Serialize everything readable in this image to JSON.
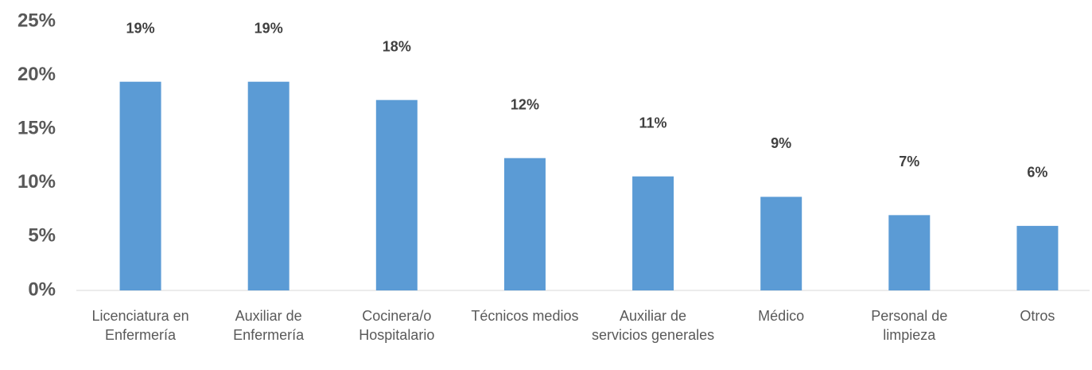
{
  "chart_data": {
    "type": "bar",
    "categories": [
      "Licenciatura en Enfermería",
      "Auxiliar de Enfermería",
      "Cocinera/o Hospitalario",
      "Técnicos medios",
      "Auxiliar de servicios generales",
      "Médico",
      "Personal de limpieza",
      "Otros"
    ],
    "values": [
      19.4,
      19.4,
      17.7,
      12.3,
      10.6,
      8.7,
      7.0,
      6.0
    ],
    "value_labels": [
      "19%",
      "19%",
      "18%",
      "12%",
      "11%",
      "9%",
      "7%",
      "6%"
    ],
    "color": "#5b9bd5",
    "ylim": [
      0,
      25
    ],
    "yticks": [
      {
        "value": 0,
        "label": "0%"
      },
      {
        "value": 5,
        "label": "5%"
      },
      {
        "value": 10,
        "label": "10%"
      },
      {
        "value": 15,
        "label": "15%"
      },
      {
        "value": 20,
        "label": "20%"
      },
      {
        "value": 25,
        "label": "25%"
      }
    ],
    "grid": false
  }
}
